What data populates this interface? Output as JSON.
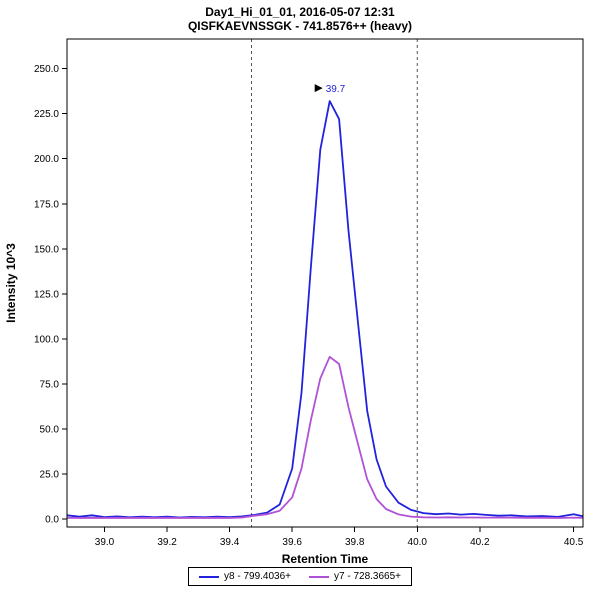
{
  "header": {
    "title_line1": "Day1_Hi_01_01, 2016-05-07 12:31",
    "title_line2": "QISFKAEVNSSGK - 741.8576++ (heavy)"
  },
  "chart_data": {
    "type": "line",
    "title": "Day1_Hi_01_01, 2016-05-07 12:31",
    "subtitle": "QISFKAEVNSSGK - 741.8576++ (heavy)",
    "xlabel": "Retention Time",
    "ylabel": "Intensity 10^3",
    "xlim": [
      38.88,
      40.53
    ],
    "ylim": [
      -4.5,
      266.5
    ],
    "x_ticks": [
      39.0,
      39.2,
      39.4,
      39.6,
      39.8,
      40.0,
      40.2,
      40.5
    ],
    "x_tick_labels": [
      "39.0",
      "39.2",
      "39.4",
      "39.6",
      "39.8",
      "40.0",
      "40.2",
      "40.5"
    ],
    "y_ticks": [
      0,
      25,
      50,
      75,
      100,
      125,
      150,
      175,
      200,
      225,
      250
    ],
    "y_tick_labels": [
      "0.0",
      "25.0",
      "50.0",
      "75.0",
      "100.0",
      "125.0",
      "150.0",
      "175.0",
      "200.0",
      "225.0",
      "250.0"
    ],
    "grid": false,
    "legend_position": "bottom",
    "background_color": "#ffffff",
    "border_color": "#000000",
    "integration_boundaries": [
      39.47,
      40.0
    ],
    "boundary_style": "dashed",
    "peak_annotation": {
      "label": "39.7",
      "x": 39.72,
      "y": 232,
      "text_color": "#2222dd",
      "pointer": "right-triangle",
      "pointer_color": "#000000"
    },
    "x": [
      38.88,
      38.92,
      38.96,
      39.0,
      39.04,
      39.08,
      39.12,
      39.16,
      39.2,
      39.24,
      39.28,
      39.32,
      39.36,
      39.4,
      39.44,
      39.48,
      39.52,
      39.56,
      39.6,
      39.63,
      39.66,
      39.69,
      39.72,
      39.75,
      39.78,
      39.81,
      39.84,
      39.87,
      39.9,
      39.94,
      39.98,
      40.02,
      40.06,
      40.1,
      40.14,
      40.18,
      40.22,
      40.26,
      40.3,
      40.35,
      40.4,
      40.45,
      40.5,
      40.53
    ],
    "series": [
      {
        "name": "y8 - 799.4036+",
        "color": "#2222dd",
        "values": [
          2.0,
          1.2,
          2.0,
          1.0,
          1.4,
          0.9,
          1.3,
          0.9,
          1.2,
          0.8,
          1.1,
          0.9,
          1.2,
          1.0,
          1.4,
          2.2,
          3.5,
          8.0,
          28,
          70,
          140,
          205,
          232,
          222,
          160,
          110,
          60,
          33,
          18,
          9,
          5,
          3.2,
          2.6,
          3.0,
          2.4,
          2.8,
          2.2,
          1.8,
          2.0,
          1.4,
          1.6,
          1.1,
          2.6,
          1.5
        ]
      },
      {
        "name": "y7 - 728.3665+",
        "color": "#b152d6",
        "values": [
          0.6,
          0.5,
          0.6,
          0.5,
          0.6,
          0.5,
          0.6,
          0.5,
          0.6,
          0.5,
          0.6,
          0.5,
          0.6,
          0.5,
          0.8,
          1.8,
          2.6,
          4.5,
          12,
          28,
          55,
          78,
          90,
          86,
          62,
          42,
          22,
          11,
          5.5,
          2.5,
          1.3,
          0.9,
          0.8,
          0.9,
          0.8,
          0.8,
          0.7,
          0.7,
          0.7,
          0.6,
          0.6,
          0.5,
          0.7,
          0.6
        ]
      }
    ]
  }
}
